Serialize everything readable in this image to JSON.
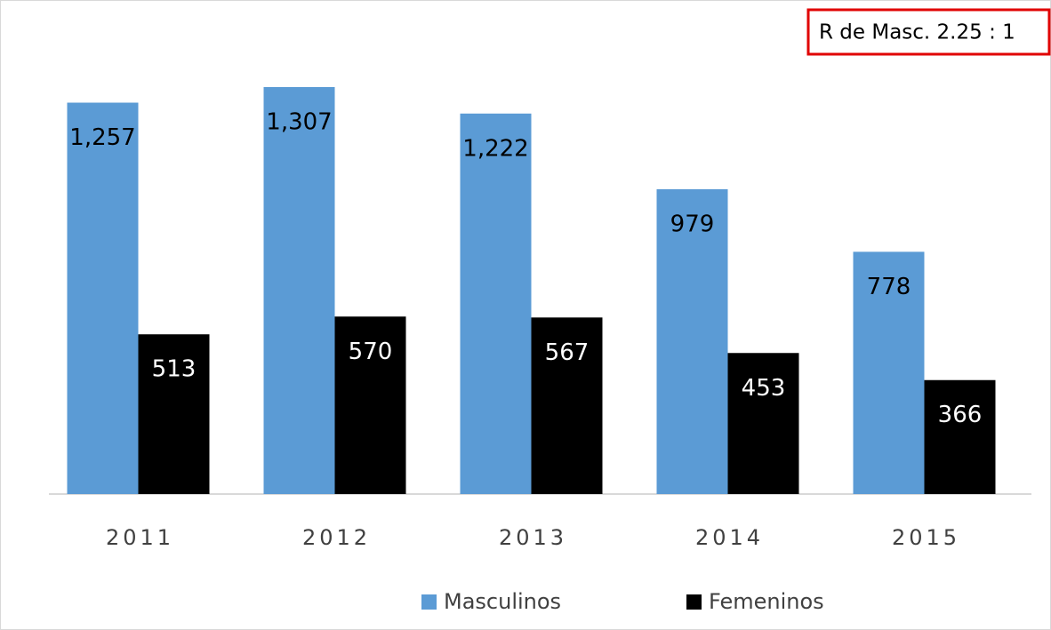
{
  "chart_data": {
    "type": "bar",
    "annotation": "R de Masc. 2.25 : 1",
    "categories": [
      "2011",
      "2012",
      "2013",
      "2014",
      "2015"
    ],
    "series": [
      {
        "name": "Masculinos",
        "color": "#5b9bd5",
        "values": [
          1257,
          1307,
          1222,
          979,
          778
        ],
        "value_labels": [
          "1,257",
          "1,307",
          "1,222",
          "979",
          "778"
        ]
      },
      {
        "name": "Femeninos",
        "color": "#000000",
        "values": [
          513,
          570,
          567,
          453,
          366
        ],
        "value_labels": [
          "513",
          "570",
          "567",
          "453",
          "366"
        ]
      }
    ]
  }
}
